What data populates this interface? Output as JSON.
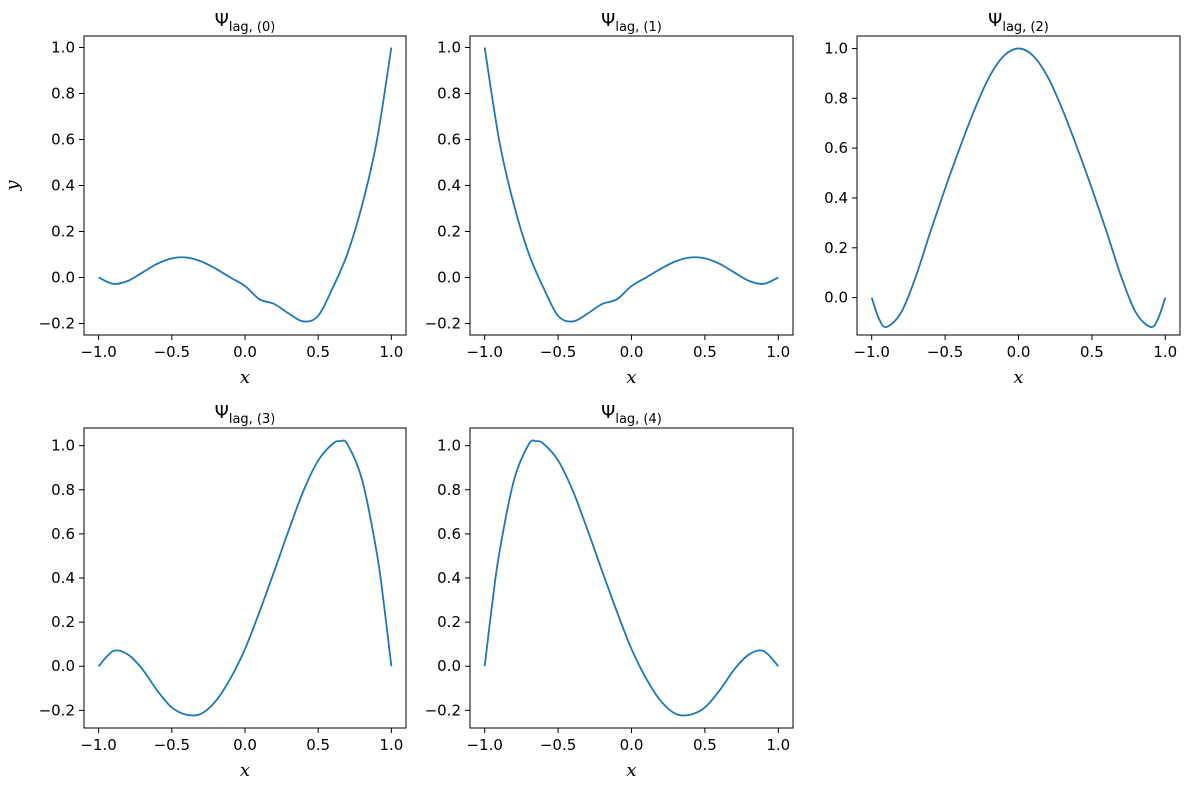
{
  "chart_data": [
    {
      "type": "line",
      "title": "Ψ",
      "title_subscript": "lag, (0)",
      "xlabel": "x",
      "ylabel": "y",
      "xlim": [
        -1.1,
        1.1
      ],
      "ylim": [
        -0.25,
        1.05
      ],
      "xticks": [
        -1.0,
        -0.5,
        0.0,
        0.5,
        1.0
      ],
      "xtick_labels": [
        "−1.0",
        "−0.5",
        "0.0",
        "0.5",
        "1.0"
      ],
      "yticks": [
        -0.2,
        0.0,
        0.2,
        0.4,
        0.6,
        0.8,
        1.0
      ],
      "ytick_labels": [
        "−0.2",
        "0.0",
        "0.2",
        "0.4",
        "0.6",
        "0.8",
        "1.0"
      ],
      "grid": false,
      "color": "#1f77b4",
      "series": [
        {
          "x": [
            -1.0,
            -0.9,
            -0.8,
            -0.7,
            -0.6,
            -0.5,
            -0.4,
            -0.3,
            -0.2,
            -0.1,
            0.0,
            0.1,
            0.2,
            0.3,
            0.4,
            0.5,
            0.6,
            0.7,
            0.8,
            0.9,
            1.0
          ],
          "y": [
            0.0,
            -0.0276,
            -0.0148,
            0.0221,
            0.0595,
            0.0833,
            0.0869,
            0.0702,
            0.0384,
            0.0,
            -0.0372,
            -0.0948,
            -0.1152,
            -0.1571,
            -0.1911,
            -0.1667,
            -0.0442,
            0.104,
            0.314,
            0.592,
            1.0
          ]
        }
      ]
    },
    {
      "type": "line",
      "title": "Ψ",
      "title_subscript": "lag, (1)",
      "xlabel": "x",
      "ylabel": "",
      "xlim": [
        -1.1,
        1.1
      ],
      "ylim": [
        -0.25,
        1.05
      ],
      "xticks": [
        -1.0,
        -0.5,
        0.0,
        0.5,
        1.0
      ],
      "xtick_labels": [
        "−1.0",
        "−0.5",
        "0.0",
        "0.5",
        "1.0"
      ],
      "yticks": [
        -0.2,
        0.0,
        0.2,
        0.4,
        0.6,
        0.8,
        1.0
      ],
      "ytick_labels": [
        "−0.2",
        "0.0",
        "0.2",
        "0.4",
        "0.6",
        "0.8",
        "1.0"
      ],
      "grid": false,
      "color": "#1f77b4",
      "series": [
        {
          "x": [
            -1.0,
            -0.9,
            -0.8,
            -0.7,
            -0.6,
            -0.5,
            -0.4,
            -0.3,
            -0.2,
            -0.1,
            0.0,
            0.1,
            0.2,
            0.3,
            0.4,
            0.5,
            0.6,
            0.7,
            0.8,
            0.9,
            1.0
          ],
          "y": [
            1.0,
            0.592,
            0.314,
            0.104,
            -0.0442,
            -0.1667,
            -0.1911,
            -0.1571,
            -0.1152,
            -0.0948,
            -0.0372,
            0.0,
            0.0384,
            0.0702,
            0.0869,
            0.0833,
            0.0595,
            0.0221,
            -0.0148,
            -0.0276,
            0.0
          ]
        }
      ]
    },
    {
      "type": "line",
      "title": "Ψ",
      "title_subscript": "lag, (2)",
      "xlabel": "x",
      "ylabel": "",
      "xlim": [
        -1.1,
        1.1
      ],
      "ylim": [
        -0.15,
        1.05
      ],
      "xticks": [
        -1.0,
        -0.5,
        0.0,
        0.5,
        1.0
      ],
      "xtick_labels": [
        "−1.0",
        "−0.5",
        "0.0",
        "0.5",
        "1.0"
      ],
      "yticks": [
        0.0,
        0.2,
        0.4,
        0.6,
        0.8,
        1.0
      ],
      "ytick_labels": [
        "0.0",
        "0.2",
        "0.4",
        "0.6",
        "0.8",
        "1.0"
      ],
      "grid": false,
      "color": "#1f77b4",
      "series": [
        {
          "x": [
            -1.0,
            -0.95,
            -0.9,
            -0.8,
            -0.7,
            -0.6,
            -0.5,
            -0.4,
            -0.3,
            -0.2,
            -0.1,
            0.0,
            0.1,
            0.2,
            0.3,
            0.4,
            0.5,
            0.6,
            0.7,
            0.8,
            0.9,
            0.95,
            1.0
          ],
          "y": [
            0.0,
            -0.0852,
            -0.1178,
            -0.0605,
            0.0835,
            0.2646,
            0.4375,
            0.6009,
            0.7537,
            0.8847,
            0.9702,
            1.0,
            0.9702,
            0.8847,
            0.7537,
            0.6009,
            0.4375,
            0.2646,
            0.0835,
            -0.0605,
            -0.1178,
            -0.0852,
            0.0
          ]
        }
      ]
    },
    {
      "type": "line",
      "title": "Ψ",
      "title_subscript": "lag, (3)",
      "xlabel": "x",
      "ylabel": "",
      "xlim": [
        -1.1,
        1.1
      ],
      "ylim": [
        -0.28,
        1.08
      ],
      "xticks": [
        -1.0,
        -0.5,
        0.0,
        0.5,
        1.0
      ],
      "xtick_labels": [
        "−1.0",
        "−0.5",
        "0.0",
        "0.5",
        "1.0"
      ],
      "yticks": [
        -0.2,
        0.0,
        0.2,
        0.4,
        0.6,
        0.8,
        1.0
      ],
      "ytick_labels": [
        "−0.2",
        "0.0",
        "0.2",
        "0.4",
        "0.6",
        "0.8",
        "1.0"
      ],
      "grid": false,
      "color": "#1f77b4",
      "series": [
        {
          "x": [
            -1.0,
            -0.9,
            -0.8,
            -0.7,
            -0.6,
            -0.5,
            -0.4,
            -0.3,
            -0.2,
            -0.1,
            0.0,
            0.1,
            0.2,
            0.3,
            0.4,
            0.5,
            0.6,
            0.65,
            0.7,
            0.8,
            0.9,
            0.95,
            1.0
          ],
          "y": [
            0.0,
            0.0687,
            0.0529,
            -0.0143,
            -0.1098,
            -0.187,
            -0.22,
            -0.2155,
            -0.158,
            -0.056,
            0.078,
            0.2485,
            0.431,
            0.619,
            0.796,
            0.933,
            1.009,
            1.02,
            1.006,
            0.845,
            0.515,
            0.276,
            0.0
          ]
        }
      ]
    },
    {
      "type": "line",
      "title": "Ψ",
      "title_subscript": "lag, (4)",
      "xlabel": "x",
      "ylabel": "",
      "xlim": [
        -1.1,
        1.1
      ],
      "ylim": [
        -0.28,
        1.08
      ],
      "xticks": [
        -1.0,
        -0.5,
        0.0,
        0.5,
        1.0
      ],
      "xtick_labels": [
        "−1.0",
        "−0.5",
        "0.0",
        "0.5",
        "1.0"
      ],
      "yticks": [
        -0.2,
        0.0,
        0.2,
        0.4,
        0.6,
        0.8,
        1.0
      ],
      "ytick_labels": [
        "−0.2",
        "0.0",
        "0.2",
        "0.4",
        "0.6",
        "0.8",
        "1.0"
      ],
      "grid": false,
      "color": "#1f77b4",
      "series": [
        {
          "x": [
            -1.0,
            -0.95,
            -0.9,
            -0.8,
            -0.7,
            -0.65,
            -0.6,
            -0.5,
            -0.4,
            -0.3,
            -0.2,
            -0.1,
            0.0,
            0.1,
            0.2,
            0.3,
            0.4,
            0.5,
            0.6,
            0.7,
            0.8,
            0.9,
            1.0
          ],
          "y": [
            0.0,
            0.276,
            0.515,
            0.845,
            1.006,
            1.02,
            1.009,
            0.933,
            0.796,
            0.619,
            0.431,
            0.2485,
            0.078,
            -0.056,
            -0.158,
            -0.2155,
            -0.22,
            -0.187,
            -0.1098,
            -0.0143,
            0.0529,
            0.0687,
            0.0
          ]
        }
      ]
    }
  ]
}
